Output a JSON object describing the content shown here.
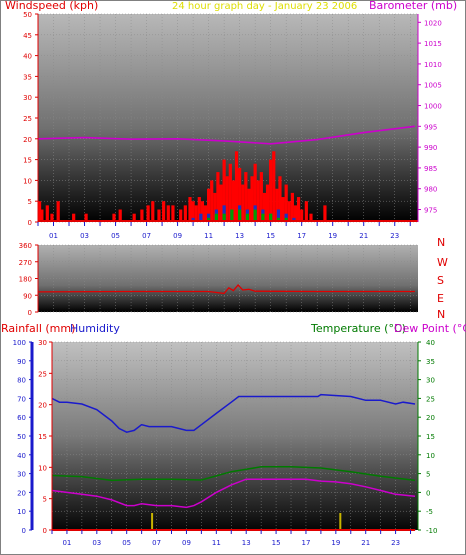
{
  "header": {
    "windspeed_label": "Windspeed (kph)",
    "title": "24 hour graph day - January 23 2006",
    "barometer_label": "Barometer (mb)"
  },
  "colors": {
    "red": "#e00000",
    "magenta": "#cc00cc",
    "yellow": "#dddd00",
    "blue": "#1a1acc",
    "green": "#007a00",
    "wind_gust": "#ff0000",
    "wind_avg": "#2030c0",
    "wind_lull": "#00a000"
  },
  "chart_data": [
    {
      "type": "bar",
      "panel": "wind",
      "y_left_ticks": [
        0,
        5,
        10,
        15,
        20,
        25,
        30,
        35,
        40,
        45,
        50
      ],
      "y_right_ticks": [
        975,
        980,
        985,
        990,
        995,
        1000,
        1005,
        1010,
        1015,
        1020
      ],
      "ylim_left": [
        0,
        50
      ],
      "ylim_right": [
        972,
        1022
      ],
      "xlim": [
        0,
        24.5
      ],
      "x_ticks": [
        "01",
        "03",
        "05",
        "07",
        "09",
        "11",
        "13",
        "15",
        "17",
        "19",
        "21",
        "23"
      ],
      "series": [
        {
          "kind": "bars",
          "color": "wind_gust",
          "x": [
            0.1,
            0.25,
            0.6,
            0.9,
            1.3,
            2.3,
            3.1,
            4.9,
            5.3,
            6.2,
            6.7,
            7.1,
            7.4,
            7.8,
            8.1,
            8.4,
            8.7,
            9.2,
            9.5,
            9.8,
            10.0,
            10.2,
            10.4,
            10.6,
            10.8,
            11.0,
            11.2,
            11.4,
            11.6,
            11.8,
            12.0,
            12.2,
            12.4,
            12.6,
            12.8,
            13.0,
            13.2,
            13.4,
            13.6,
            13.8,
            14.0,
            14.2,
            14.4,
            14.6,
            14.8,
            15.0,
            15.2,
            15.4,
            15.6,
            15.8,
            16.0,
            16.2,
            16.4,
            16.6,
            16.8,
            17.0,
            17.3,
            17.6,
            18.5
          ],
          "values": [
            5,
            3,
            4,
            2,
            5,
            2,
            2,
            2,
            3,
            2,
            3,
            4,
            5,
            3,
            5,
            4,
            4,
            3,
            4,
            6,
            5,
            4,
            6,
            5,
            4,
            8,
            10,
            7,
            12,
            9,
            15,
            11,
            14,
            10,
            17,
            13,
            9,
            12,
            8,
            11,
            14,
            10,
            12,
            7,
            9,
            15,
            17,
            8,
            11,
            6,
            9,
            5,
            7,
            4,
            6,
            3,
            5,
            2,
            4
          ]
        },
        {
          "kind": "bars",
          "color": "wind_avg",
          "x": [
            10.0,
            10.5,
            11.0,
            11.5,
            12.0,
            12.5,
            13.0,
            13.5,
            14.0,
            14.5,
            15.0,
            15.5,
            16.0,
            16.5
          ],
          "values": [
            1,
            2,
            2,
            3,
            4,
            3,
            4,
            3,
            4,
            3,
            2,
            3,
            2,
            1
          ]
        },
        {
          "kind": "bars",
          "color": "wind_lull",
          "x": [
            11.0,
            11.5,
            12.0,
            12.5,
            13.0,
            13.5,
            14.0,
            14.5,
            15.0,
            15.5,
            16.0
          ],
          "values": [
            1,
            2,
            2,
            3,
            3,
            2,
            3,
            2,
            2,
            1,
            1
          ]
        },
        {
          "kind": "line",
          "axis": "right",
          "color": "magenta",
          "x": [
            0,
            3,
            6,
            9,
            12,
            15,
            18,
            21,
            24.3
          ],
          "values": [
            992,
            992.3,
            991.9,
            992,
            991.5,
            990.8,
            991.8,
            993.5,
            995
          ]
        }
      ]
    },
    {
      "type": "line",
      "panel": "direction",
      "y_ticks": [
        0,
        90,
        180,
        270,
        360
      ],
      "ylim": [
        0,
        360
      ],
      "xlim": [
        0,
        24.5
      ],
      "compass_labels": [
        "N",
        "W",
        "S",
        "E",
        "N"
      ],
      "series": [
        {
          "color": "red",
          "x": [
            0,
            6,
            11,
            12.0,
            12.3,
            12.6,
            12.9,
            13.2,
            13.6,
            14,
            18,
            24.3
          ],
          "values": [
            108,
            110,
            110,
            100,
            130,
            115,
            145,
            118,
            122,
            112,
            110,
            110
          ]
        }
      ]
    },
    {
      "type": "line",
      "panel": "temperature",
      "labels": {
        "rainfall": "Rainfall (mm)",
        "humidity": "Humidity",
        "temperature": "Temperature (°C)",
        "dewpoint": "Dew Point (°C)"
      },
      "humidity_ticks": [
        0,
        10,
        20,
        30,
        40,
        50,
        60,
        70,
        80,
        90,
        100
      ],
      "rain_ticks": [
        0,
        5,
        10,
        15,
        20,
        25,
        30
      ],
      "temp_ticks": [
        -10,
        -5,
        0,
        5,
        10,
        15,
        20,
        25,
        30,
        35,
        40
      ],
      "ylim_humidity": [
        0,
        100
      ],
      "ylim_temp": [
        -10,
        40
      ],
      "xlim": [
        0,
        24.5
      ],
      "x_ticks": [
        "01",
        "03",
        "05",
        "07",
        "09",
        "11",
        "13",
        "15",
        "17",
        "19",
        "21",
        "23"
      ],
      "series": [
        {
          "name": "Humidity",
          "axis": "humidity",
          "color": "blue",
          "x": [
            0,
            0.5,
            1,
            2,
            3,
            4,
            4.5,
            5,
            5.5,
            6,
            6.5,
            7,
            8,
            9,
            9.5,
            10,
            11,
            12,
            12.5,
            13,
            14,
            16,
            17.8,
            18,
            20,
            21,
            22,
            23,
            23.5,
            24.3
          ],
          "values": [
            70,
            68,
            68,
            67,
            64,
            58,
            54,
            52,
            53,
            56,
            55,
            55,
            55,
            53,
            53,
            56,
            62,
            68,
            71,
            71,
            71,
            71,
            71,
            72,
            71,
            69,
            69,
            67,
            68,
            67
          ]
        },
        {
          "name": "Temperature",
          "axis": "temp",
          "color": "green",
          "x": [
            0,
            2,
            4,
            6,
            8,
            10,
            12,
            14,
            16,
            18,
            20,
            22,
            24.3
          ],
          "values": [
            4.5,
            4.2,
            3.2,
            3.5,
            3.5,
            3.3,
            5.5,
            6.8,
            6.8,
            6.5,
            5.5,
            4.3,
            3.2
          ]
        },
        {
          "name": "Dew Point",
          "axis": "temp",
          "color": "magenta",
          "x": [
            0,
            1,
            2,
            3,
            4,
            5,
            5.5,
            6,
            7,
            8,
            9,
            9.5,
            10,
            11,
            12,
            13,
            15,
            17,
            18,
            19,
            20,
            21,
            22,
            23,
            24.3
          ],
          "values": [
            0.5,
            0,
            -0.5,
            -1,
            -2,
            -3.5,
            -3.5,
            -3,
            -3.5,
            -3.5,
            -4,
            -3.5,
            -2.5,
            0,
            2,
            3.5,
            3.5,
            3.5,
            3,
            2.8,
            2.3,
            1.5,
            0.5,
            -0.5,
            -1
          ]
        },
        {
          "name": "Rainfall",
          "axis": "rain",
          "color": "red",
          "x": [
            0,
            24.3
          ],
          "values": [
            0,
            0
          ]
        }
      ],
      "markers": [
        {
          "x": 6.7,
          "color": "#c8b400"
        },
        {
          "x": 19.3,
          "color": "#c8b400"
        }
      ]
    }
  ]
}
